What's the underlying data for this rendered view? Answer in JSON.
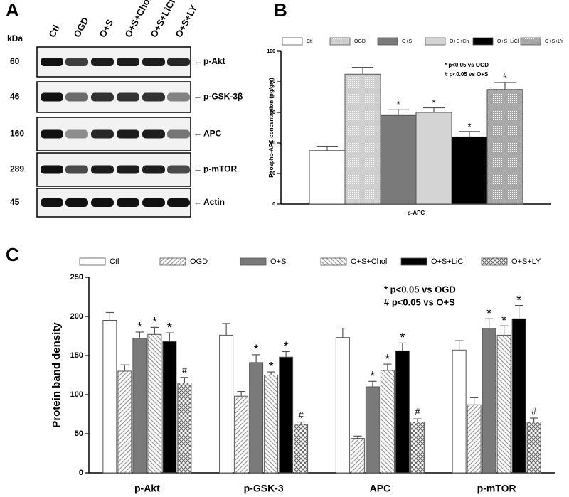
{
  "blot": {
    "panel_label": "A",
    "kda_label": "kDa",
    "lanes": [
      "Ctl",
      "OGD",
      "O+S",
      "O+S+Chol",
      "O+S+LiCl",
      "O+S+LY"
    ],
    "rows": [
      {
        "kda": "60",
        "label": "p-Akt"
      },
      {
        "kda": "46",
        "label": "p-GSK-3β"
      },
      {
        "kda": "160",
        "label": "APC"
      },
      {
        "kda": "289",
        "label": "p-mTOR"
      },
      {
        "kda": "45",
        "label": "Actin"
      }
    ]
  },
  "chart_data": [
    {
      "panel_label": "B",
      "type": "bar",
      "ylabel": "Phospho-APC concentration (pg/gm)",
      "categories": [
        "p-APC"
      ],
      "series": [
        {
          "name": "Ctl",
          "color": "#ffffff",
          "values": [
            35
          ],
          "errors": [
            2.5
          ]
        },
        {
          "name": "OGD",
          "color": "#cfcfcf",
          "pattern": "dots",
          "values": [
            85
          ],
          "errors": [
            4.5
          ]
        },
        {
          "name": "O+S",
          "color": "#7a7a7a",
          "values": [
            58
          ],
          "errors": [
            4
          ],
          "markers": [
            "*"
          ]
        },
        {
          "name": "O+S+Ch",
          "color": "#d4d4d4",
          "values": [
            60
          ],
          "errors": [
            3
          ],
          "markers": [
            "*"
          ]
        },
        {
          "name": "O+S+LiCl",
          "color": "#000000",
          "values": [
            44
          ],
          "errors": [
            3.5
          ],
          "markers": [
            "*"
          ]
        },
        {
          "name": "O+S+LY",
          "color": "#a8a8a8",
          "pattern": "dots",
          "values": [
            75
          ],
          "errors": [
            4.5
          ],
          "markers": [
            "#"
          ]
        }
      ],
      "ylim": [
        0,
        100
      ],
      "yticks": [
        0,
        20,
        40,
        60,
        80,
        100
      ],
      "annotations": [
        "* p<0.05 vs OGD",
        "# p<0.05 vs O+S"
      ]
    },
    {
      "panel_label": "C",
      "type": "bar",
      "ylabel": "Protein band density",
      "categories": [
        "p-Akt",
        "p-GSK-3",
        "APC",
        "p-mTOR"
      ],
      "series": [
        {
          "name": "Ctl",
          "color": "#ffffff",
          "values": [
            195,
            176,
            173,
            157
          ],
          "errors": [
            10,
            15,
            12,
            12
          ]
        },
        {
          "name": "OGD",
          "color": "#9a9a9a",
          "pattern": "diagonal",
          "values": [
            130,
            98,
            44,
            87
          ],
          "errors": [
            8,
            6,
            3,
            9
          ]
        },
        {
          "name": "O+S",
          "color": "#7a7a7a",
          "values": [
            172,
            141,
            110,
            185
          ],
          "errors": [
            8,
            10,
            7,
            12
          ],
          "markers": [
            "*",
            "*",
            "*",
            "*"
          ]
        },
        {
          "name": "O+S+Chol",
          "color": "#9a9a9a",
          "pattern": "back-diagonal",
          "values": [
            177,
            125,
            131,
            176
          ],
          "errors": [
            9,
            4,
            8,
            12
          ],
          "markers": [
            "*",
            "*",
            "*",
            "*"
          ]
        },
        {
          "name": "O+S+LiCl",
          "color": "#000000",
          "values": [
            168,
            148,
            156,
            197
          ],
          "errors": [
            11,
            7,
            10,
            17
          ],
          "markers": [
            "*",
            "*",
            "*",
            "*"
          ]
        },
        {
          "name": "O+S+LY",
          "color": "#6a6a6a",
          "pattern": "crosshatch",
          "values": [
            115,
            62,
            65,
            65
          ],
          "errors": [
            7,
            3,
            4,
            5
          ],
          "markers": [
            "#",
            "#",
            "#",
            "#"
          ]
        }
      ],
      "ylim": [
        0,
        250
      ],
      "yticks": [
        0,
        50,
        100,
        150,
        200,
        250
      ],
      "annotations": [
        "* p<0.05 vs OGD",
        "# p<0.05 vs O+S"
      ]
    }
  ]
}
